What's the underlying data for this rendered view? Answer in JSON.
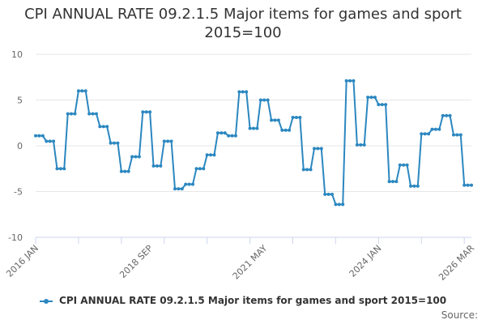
{
  "chart": {
    "title": "CPI ANNUAL RATE 09.2.1.5 Major items for games and sport 2015=100",
    "legend_label": "CPI ANNUAL RATE 09.2.1.5 Major items for games and sport 2015=100",
    "source_label": "Source:",
    "series_color": "#2b87c0",
    "grid_color": "#e6e6e6",
    "axis_color": "#ccd6eb"
  },
  "chart_data": {
    "type": "line",
    "title": "CPI ANNUAL RATE 09.2.1.5 Major items for games and sport 2015=100",
    "xlabel": "",
    "ylabel": "",
    "ylim": [
      -10,
      10
    ],
    "yticks": [
      10,
      5,
      0,
      -5,
      -10
    ],
    "xtick_labels": [
      {
        "label": "2016 JAN",
        "index": 0
      },
      {
        "label": "2018 SEP",
        "index": 32
      },
      {
        "label": "2021 MAY",
        "index": 64
      },
      {
        "label": "2024 JAN",
        "index": 96
      },
      {
        "label": "2026 MAR",
        "index": 122
      }
    ],
    "grid": true,
    "legend_position": "bottom",
    "series": [
      {
        "name": "CPI ANNUAL RATE 09.2.1.5 Major items for games and sport 2015=100",
        "start": "2016 JAN",
        "end": "2026 MAR",
        "values": [
          1.1,
          1.1,
          1.1,
          0.5,
          0.5,
          0.5,
          -2.5,
          -2.5,
          -2.5,
          3.5,
          3.5,
          3.5,
          6.0,
          6.0,
          6.0,
          3.5,
          3.5,
          3.5,
          2.1,
          2.1,
          2.1,
          0.3,
          0.3,
          0.3,
          -2.8,
          -2.8,
          -2.8,
          -1.2,
          -1.2,
          -1.2,
          3.7,
          3.7,
          3.7,
          -2.2,
          -2.2,
          -2.2,
          0.5,
          0.5,
          0.5,
          -4.7,
          -4.7,
          -4.7,
          -4.2,
          -4.2,
          -4.2,
          -2.5,
          -2.5,
          -2.5,
          -1.0,
          -1.0,
          -1.0,
          1.4,
          1.4,
          1.4,
          1.1,
          1.1,
          1.1,
          5.9,
          5.9,
          5.9,
          1.9,
          1.9,
          1.9,
          5.0,
          5.0,
          5.0,
          2.8,
          2.8,
          2.8,
          1.7,
          1.7,
          1.7,
          3.1,
          3.1,
          3.1,
          -2.6,
          -2.6,
          -2.6,
          -0.3,
          -0.3,
          -0.3,
          -5.3,
          -5.3,
          -5.3,
          -6.4,
          -6.4,
          -6.4,
          7.1,
          7.1,
          7.1,
          0.1,
          0.1,
          0.1,
          5.3,
          5.3,
          5.3,
          4.5,
          4.5,
          4.5,
          -3.9,
          -3.9,
          -3.9,
          -2.1,
          -2.1,
          -2.1,
          -4.4,
          -4.4,
          -4.4,
          1.3,
          1.3,
          1.3,
          1.8,
          1.8,
          1.8,
          3.3,
          3.3,
          3.3,
          1.2,
          1.2,
          1.2,
          -4.3,
          -4.3,
          -4.3
        ]
      }
    ]
  }
}
